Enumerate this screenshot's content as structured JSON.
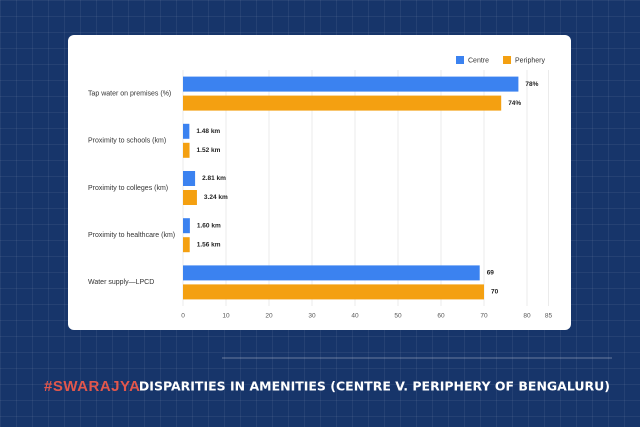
{
  "brand": "#SWARAJYA",
  "chart_data": {
    "type": "bar",
    "orientation": "horizontal",
    "title": "DISPARITIES IN AMENITIES (CENTRE V. PERIPHERY OF BENGALURU)",
    "categories": [
      "Tap water on premises (%)",
      "Proximity to schools (km)",
      "Proximity to colleges (km)",
      "Proximity to healthcare (km)",
      "Water supply—LPCD"
    ],
    "series": [
      {
        "name": "Centre",
        "color": "#3b82f0",
        "values": [
          78,
          1.48,
          2.81,
          1.6,
          69
        ],
        "value_labels": [
          "78%",
          "1.48 km",
          "2.81 km",
          "1.60 km",
          "69"
        ]
      },
      {
        "name": "Periphery",
        "color": "#f4a011",
        "values": [
          74,
          1.52,
          3.24,
          1.56,
          70
        ],
        "value_labels": [
          "74%",
          "1.52 km",
          "3.24 km",
          "1.56 km",
          "70"
        ]
      }
    ],
    "xlim": [
      0,
      85
    ],
    "xticks": [
      0,
      10,
      20,
      30,
      40,
      50,
      60,
      70,
      80,
      85
    ],
    "grid": true,
    "legend": "top-right"
  }
}
